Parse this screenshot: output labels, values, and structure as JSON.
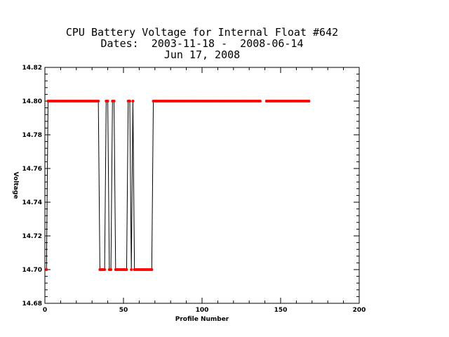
{
  "chart_data": {
    "type": "line",
    "title_lines": [
      "CPU Battery Voltage for Internal Float #642",
      "Dates:  2003-11-18 -  2008-06-14",
      "Jun 17, 2008"
    ],
    "xlabel": "Profile Number",
    "ylabel": "Voltage",
    "xlim": [
      0,
      200
    ],
    "ylim": [
      14.68,
      14.82
    ],
    "x_ticks": [
      0,
      50,
      100,
      150,
      200
    ],
    "y_ticks": [
      14.68,
      14.7,
      14.72,
      14.74,
      14.76,
      14.78,
      14.8,
      14.82
    ],
    "x_tick_labels": [
      "0",
      "50",
      "100",
      "150",
      "200"
    ],
    "y_tick_labels": [
      "14.68",
      "14.70",
      "14.72",
      "14.74",
      "14.76",
      "14.78",
      "14.80",
      "14.82"
    ],
    "grid": false,
    "series": [
      {
        "color": "#ff0000",
        "line_color": "#000000",
        "gaps_after": [
          137
        ],
        "points": [
          [
            1,
            14.7
          ],
          [
            2,
            14.8
          ],
          [
            3,
            14.8
          ],
          [
            4,
            14.8
          ],
          [
            5,
            14.8
          ],
          [
            6,
            14.8
          ],
          [
            7,
            14.8
          ],
          [
            8,
            14.8
          ],
          [
            9,
            14.8
          ],
          [
            10,
            14.8
          ],
          [
            11,
            14.8
          ],
          [
            12,
            14.8
          ],
          [
            13,
            14.8
          ],
          [
            14,
            14.8
          ],
          [
            15,
            14.8
          ],
          [
            16,
            14.8
          ],
          [
            17,
            14.8
          ],
          [
            18,
            14.8
          ],
          [
            19,
            14.8
          ],
          [
            20,
            14.8
          ],
          [
            21,
            14.8
          ],
          [
            22,
            14.8
          ],
          [
            23,
            14.8
          ],
          [
            24,
            14.8
          ],
          [
            25,
            14.8
          ],
          [
            26,
            14.8
          ],
          [
            27,
            14.8
          ],
          [
            28,
            14.8
          ],
          [
            29,
            14.8
          ],
          [
            30,
            14.8
          ],
          [
            31,
            14.8
          ],
          [
            32,
            14.8
          ],
          [
            33,
            14.8
          ],
          [
            34,
            14.8
          ],
          [
            35,
            14.7
          ],
          [
            36,
            14.7
          ],
          [
            37,
            14.7
          ],
          [
            38,
            14.7
          ],
          [
            39,
            14.8
          ],
          [
            40,
            14.8
          ],
          [
            41,
            14.7
          ],
          [
            42,
            14.7
          ],
          [
            43,
            14.8
          ],
          [
            44,
            14.8
          ],
          [
            45,
            14.7
          ],
          [
            46,
            14.7
          ],
          [
            47,
            14.7
          ],
          [
            48,
            14.7
          ],
          [
            49,
            14.7
          ],
          [
            50,
            14.7
          ],
          [
            51,
            14.7
          ],
          [
            52,
            14.7
          ],
          [
            53,
            14.8
          ],
          [
            54,
            14.8
          ],
          [
            55,
            14.7
          ],
          [
            56,
            14.8
          ],
          [
            57,
            14.7
          ],
          [
            58,
            14.7
          ],
          [
            59,
            14.7
          ],
          [
            60,
            14.7
          ],
          [
            61,
            14.7
          ],
          [
            62,
            14.7
          ],
          [
            63,
            14.7
          ],
          [
            64,
            14.7
          ],
          [
            65,
            14.7
          ],
          [
            66,
            14.7
          ],
          [
            67,
            14.7
          ],
          [
            68,
            14.7
          ],
          [
            69,
            14.8
          ],
          [
            70,
            14.8
          ],
          [
            71,
            14.8
          ],
          [
            72,
            14.8
          ],
          [
            73,
            14.8
          ],
          [
            74,
            14.8
          ],
          [
            75,
            14.8
          ],
          [
            76,
            14.8
          ],
          [
            77,
            14.8
          ],
          [
            78,
            14.8
          ],
          [
            79,
            14.8
          ],
          [
            80,
            14.8
          ],
          [
            81,
            14.8
          ],
          [
            82,
            14.8
          ],
          [
            83,
            14.8
          ],
          [
            84,
            14.8
          ],
          [
            85,
            14.8
          ],
          [
            86,
            14.8
          ],
          [
            87,
            14.8
          ],
          [
            88,
            14.8
          ],
          [
            89,
            14.8
          ],
          [
            90,
            14.8
          ],
          [
            91,
            14.8
          ],
          [
            92,
            14.8
          ],
          [
            93,
            14.8
          ],
          [
            94,
            14.8
          ],
          [
            95,
            14.8
          ],
          [
            96,
            14.8
          ],
          [
            97,
            14.8
          ],
          [
            98,
            14.8
          ],
          [
            99,
            14.8
          ],
          [
            100,
            14.8
          ],
          [
            101,
            14.8
          ],
          [
            102,
            14.8
          ],
          [
            103,
            14.8
          ],
          [
            104,
            14.8
          ],
          [
            105,
            14.8
          ],
          [
            106,
            14.8
          ],
          [
            107,
            14.8
          ],
          [
            108,
            14.8
          ],
          [
            109,
            14.8
          ],
          [
            110,
            14.8
          ],
          [
            111,
            14.8
          ],
          [
            112,
            14.8
          ],
          [
            113,
            14.8
          ],
          [
            114,
            14.8
          ],
          [
            115,
            14.8
          ],
          [
            116,
            14.8
          ],
          [
            117,
            14.8
          ],
          [
            118,
            14.8
          ],
          [
            119,
            14.8
          ],
          [
            120,
            14.8
          ],
          [
            121,
            14.8
          ],
          [
            122,
            14.8
          ],
          [
            123,
            14.8
          ],
          [
            124,
            14.8
          ],
          [
            125,
            14.8
          ],
          [
            126,
            14.8
          ],
          [
            127,
            14.8
          ],
          [
            128,
            14.8
          ],
          [
            129,
            14.8
          ],
          [
            130,
            14.8
          ],
          [
            131,
            14.8
          ],
          [
            132,
            14.8
          ],
          [
            133,
            14.8
          ],
          [
            134,
            14.8
          ],
          [
            135,
            14.8
          ],
          [
            136,
            14.8
          ],
          [
            137,
            14.8
          ],
          [
            141,
            14.8
          ],
          [
            142,
            14.8
          ],
          [
            143,
            14.8
          ],
          [
            144,
            14.8
          ],
          [
            145,
            14.8
          ],
          [
            146,
            14.8
          ],
          [
            147,
            14.8
          ],
          [
            148,
            14.8
          ],
          [
            149,
            14.8
          ],
          [
            150,
            14.8
          ],
          [
            151,
            14.8
          ],
          [
            152,
            14.8
          ],
          [
            153,
            14.8
          ],
          [
            154,
            14.8
          ],
          [
            155,
            14.8
          ],
          [
            156,
            14.8
          ],
          [
            157,
            14.8
          ],
          [
            158,
            14.8
          ],
          [
            159,
            14.8
          ],
          [
            160,
            14.8
          ],
          [
            161,
            14.8
          ],
          [
            162,
            14.8
          ],
          [
            163,
            14.8
          ],
          [
            164,
            14.8
          ],
          [
            165,
            14.8
          ],
          [
            166,
            14.8
          ],
          [
            167,
            14.8
          ],
          [
            168,
            14.8
          ]
        ]
      }
    ]
  }
}
